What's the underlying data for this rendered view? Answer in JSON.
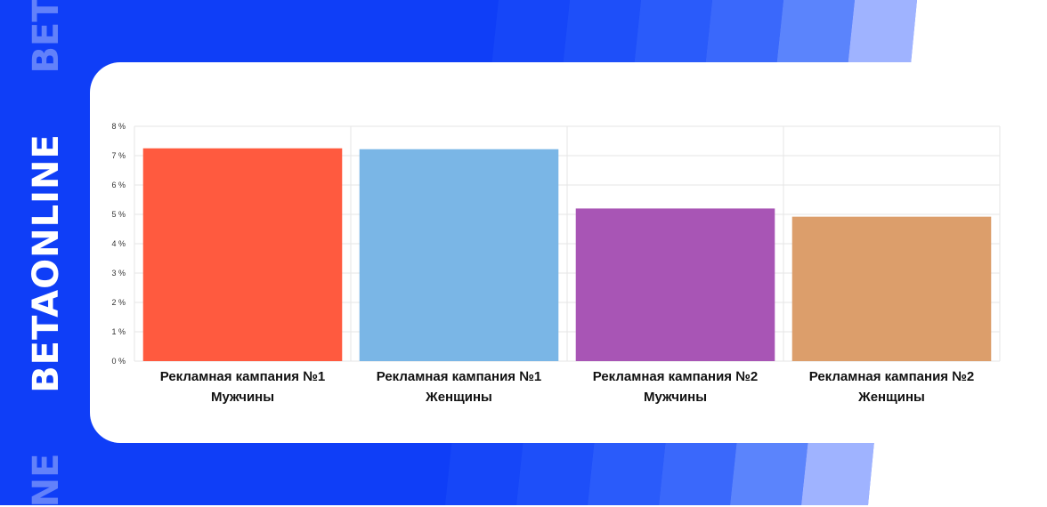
{
  "brand": {
    "name": "BETAONLINE",
    "ghost_top": "BET",
    "ghost_bottom": "NE"
  },
  "colors": {
    "background_blue": "#0f3ef7",
    "stripe_light": "#9fb3ff",
    "card": "#ffffff",
    "grid": "#e6e6e6"
  },
  "chart_data": {
    "type": "bar",
    "categories": [
      [
        "Рекламная кампания №1",
        "Мужчины"
      ],
      [
        "Рекламная кампания №1",
        "Женщины"
      ],
      [
        "Рекламная кампания №2",
        "Мужчины"
      ],
      [
        "Рекламная кампания №2",
        "Женщины"
      ]
    ],
    "values": [
      7.25,
      7.22,
      5.2,
      4.92
    ],
    "bar_colors": [
      "#ff5a3f",
      "#7ab6e6",
      "#a855b5",
      "#dc9e6b"
    ],
    "y_ticks": [
      "0 %",
      "1 %",
      "2 %",
      "3 %",
      "4 %",
      "5 %",
      "6 %",
      "7 %",
      "8 %"
    ],
    "ylim": [
      0,
      8
    ],
    "grid": true,
    "title": "",
    "xlabel": "",
    "ylabel": ""
  }
}
